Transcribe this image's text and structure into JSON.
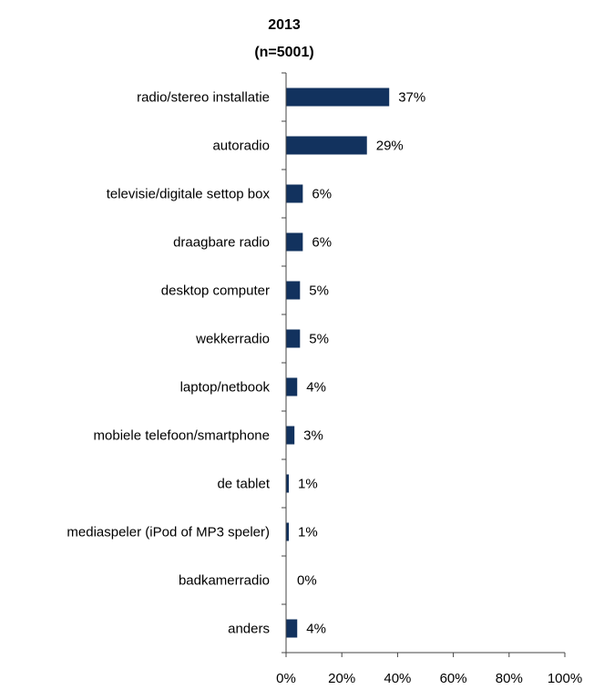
{
  "chart_data": {
    "type": "bar",
    "orientation": "horizontal",
    "title": "2013",
    "subtitle": "(n=5001)",
    "xlabel": "",
    "ylabel": "",
    "categories": [
      "radio/stereo installatie",
      "autoradio",
      "televisie/digitale settop box",
      "draagbare radio",
      "desktop computer",
      "wekkerradio",
      "laptop/netbook",
      "mobiele telefoon/smartphone",
      "de tablet",
      "mediaspeler (iPod of MP3 speler)",
      "badkamerradio",
      "anders"
    ],
    "values": [
      37,
      29,
      6,
      6,
      5,
      5,
      4,
      3,
      1,
      1,
      0,
      4
    ],
    "value_labels": [
      "37%",
      "29%",
      "6%",
      "6%",
      "5%",
      "5%",
      "4%",
      "3%",
      "1%",
      "1%",
      "0%",
      "4%"
    ],
    "xlim": [
      0,
      100
    ],
    "xticks": [
      "0%",
      "20%",
      "40%",
      "60%",
      "80%",
      "100%"
    ],
    "grid": false,
    "legend": "none",
    "bar_color": "#12325e"
  }
}
